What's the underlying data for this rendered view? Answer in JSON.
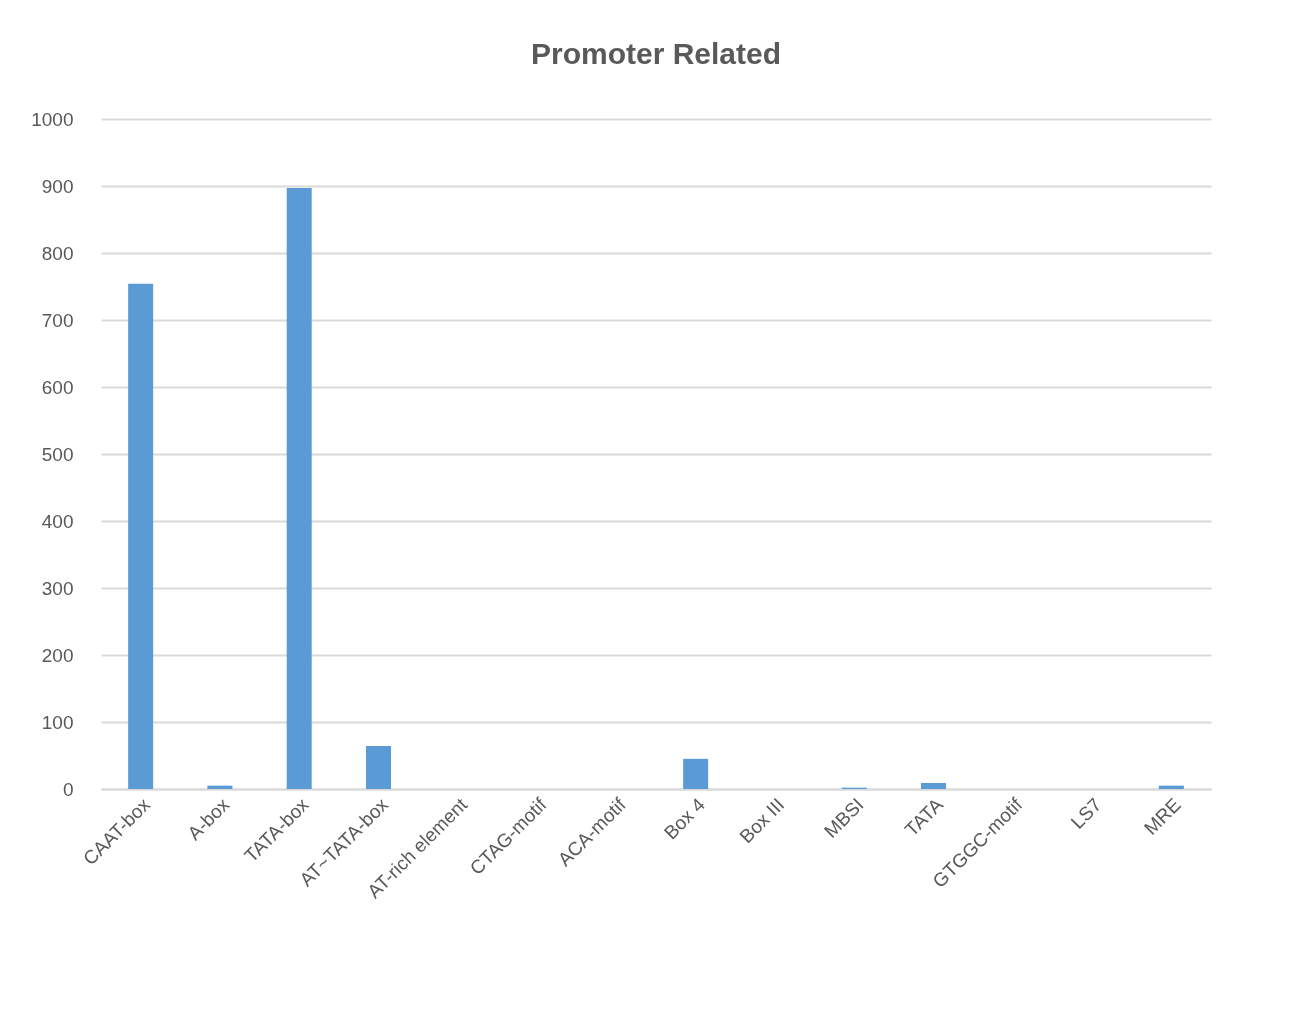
{
  "chart_data": {
    "type": "bar",
    "title": "Promoter Related",
    "categories": [
      "CAAT-box",
      "A-box",
      "TATA-box",
      "AT~TATA-box",
      "AT-rich element",
      "CTAG-motif",
      "ACA-motif",
      "Box 4",
      "Box III",
      "MBSI",
      "TATA",
      "GTGGC-motif",
      "LS7",
      "MRE"
    ],
    "values": [
      754,
      5,
      897,
      64,
      0,
      0,
      0,
      45,
      0,
      2,
      9,
      0,
      0,
      5
    ],
    "color": "#5b9bd5",
    "ylim": [
      0,
      1000
    ],
    "yticks": [
      0,
      100,
      200,
      300,
      400,
      500,
      600,
      700,
      800,
      900,
      1000
    ],
    "grid": "y"
  }
}
